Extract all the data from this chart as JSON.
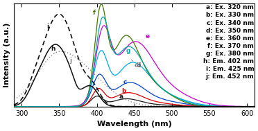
{
  "xlabel": "Wavelength (nm)",
  "ylabel": "Intensity (a.u.)",
  "xlim": [
    290,
    610
  ],
  "ylim": [
    0,
    1.08
  ],
  "legend_entries": [
    "a: Ex. 320 nm",
    "b: Ex. 330 nm",
    "c: Ex. 340 nm",
    "d: Ex. 350 nm",
    "e: Ex. 360 nm",
    "f: Ex. 370 nm",
    "g: Ex. 380 nm",
    "h: Em. 402 nm",
    "i: Em. 425 nm",
    "j: Em. 452 nm"
  ],
  "em_colors": [
    "#1a1a1a",
    "#dd0000",
    "#0044cc",
    "#00aaee",
    "#cc00cc",
    "#447700",
    "#00aaaa"
  ],
  "tick_fontsize": 7,
  "label_fontsize": 8,
  "legend_fontsize": 6.5,
  "bg_color": "#ffffff"
}
